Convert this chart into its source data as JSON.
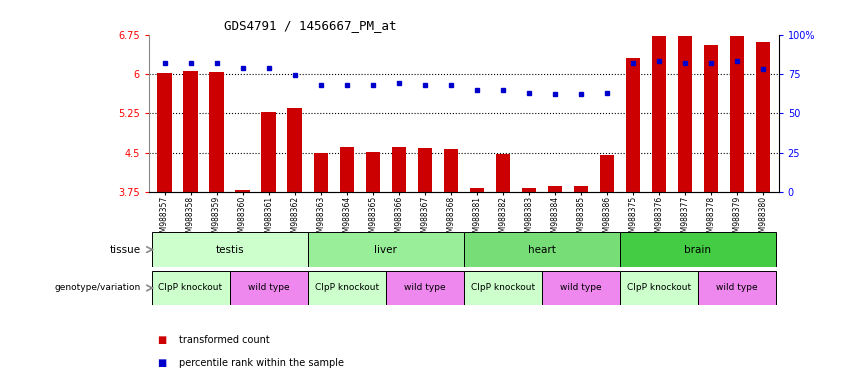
{
  "title": "GDS4791 / 1456667_PM_at",
  "samples": [
    "GSM988357",
    "GSM988358",
    "GSM988359",
    "GSM988360",
    "GSM988361",
    "GSM988362",
    "GSM988363",
    "GSM988364",
    "GSM988365",
    "GSM988366",
    "GSM988367",
    "GSM988368",
    "GSM988381",
    "GSM988382",
    "GSM988383",
    "GSM988384",
    "GSM988385",
    "GSM988386",
    "GSM988375",
    "GSM988376",
    "GSM988377",
    "GSM988378",
    "GSM988379",
    "GSM988380"
  ],
  "bar_values": [
    6.02,
    6.05,
    6.03,
    3.78,
    5.28,
    5.35,
    4.5,
    4.6,
    4.52,
    4.6,
    4.58,
    4.56,
    3.82,
    4.47,
    3.82,
    3.87,
    3.87,
    4.45,
    6.3,
    6.72,
    6.72,
    6.55,
    6.72,
    6.6
  ],
  "percentile_values": [
    82,
    82,
    82,
    79,
    79,
    74,
    68,
    68,
    68,
    69,
    68,
    68,
    65,
    65,
    63,
    62,
    62,
    63,
    82,
    83,
    82,
    82,
    83,
    78
  ],
  "ylim_left": [
    3.75,
    6.75
  ],
  "ylim_right": [
    0,
    100
  ],
  "yticks_left": [
    3.75,
    4.5,
    5.25,
    6.0,
    6.75
  ],
  "yticks_right": [
    0,
    25,
    50,
    75,
    100
  ],
  "ytick_labels_left": [
    "3.75",
    "4.5",
    "5.25",
    "6",
    "6.75"
  ],
  "ytick_labels_right": [
    "0",
    "25",
    "50",
    "75",
    "100%"
  ],
  "bar_color": "#cc0000",
  "dot_color": "#0000cc",
  "hline_values": [
    6.0,
    5.25,
    4.5
  ],
  "tissue_labels": [
    {
      "label": "testis",
      "start": 0,
      "end": 6,
      "color": "#ccffcc"
    },
    {
      "label": "liver",
      "start": 6,
      "end": 12,
      "color": "#99ee99"
    },
    {
      "label": "heart",
      "start": 12,
      "end": 18,
      "color": "#77dd77"
    },
    {
      "label": "brain",
      "start": 18,
      "end": 24,
      "color": "#44cc44"
    }
  ],
  "genotype_labels": [
    {
      "label": "ClpP knockout",
      "start": 0,
      "end": 3,
      "color": "#ccffcc"
    },
    {
      "label": "wild type",
      "start": 3,
      "end": 6,
      "color": "#ee88ee"
    },
    {
      "label": "ClpP knockout",
      "start": 6,
      "end": 9,
      "color": "#ccffcc"
    },
    {
      "label": "wild type",
      "start": 9,
      "end": 12,
      "color": "#ee88ee"
    },
    {
      "label": "ClpP knockout",
      "start": 12,
      "end": 15,
      "color": "#ccffcc"
    },
    {
      "label": "wild type",
      "start": 15,
      "end": 18,
      "color": "#ee88ee"
    },
    {
      "label": "ClpP knockout",
      "start": 18,
      "end": 21,
      "color": "#ccffcc"
    },
    {
      "label": "wild type",
      "start": 21,
      "end": 24,
      "color": "#ee88ee"
    }
  ],
  "tissue_row_label": "tissue",
  "genotype_row_label": "genotype/variation",
  "legend_bar_label": "transformed count",
  "legend_dot_label": "percentile rank within the sample",
  "bar_width": 0.55,
  "xlim": [
    -0.6,
    23.6
  ]
}
